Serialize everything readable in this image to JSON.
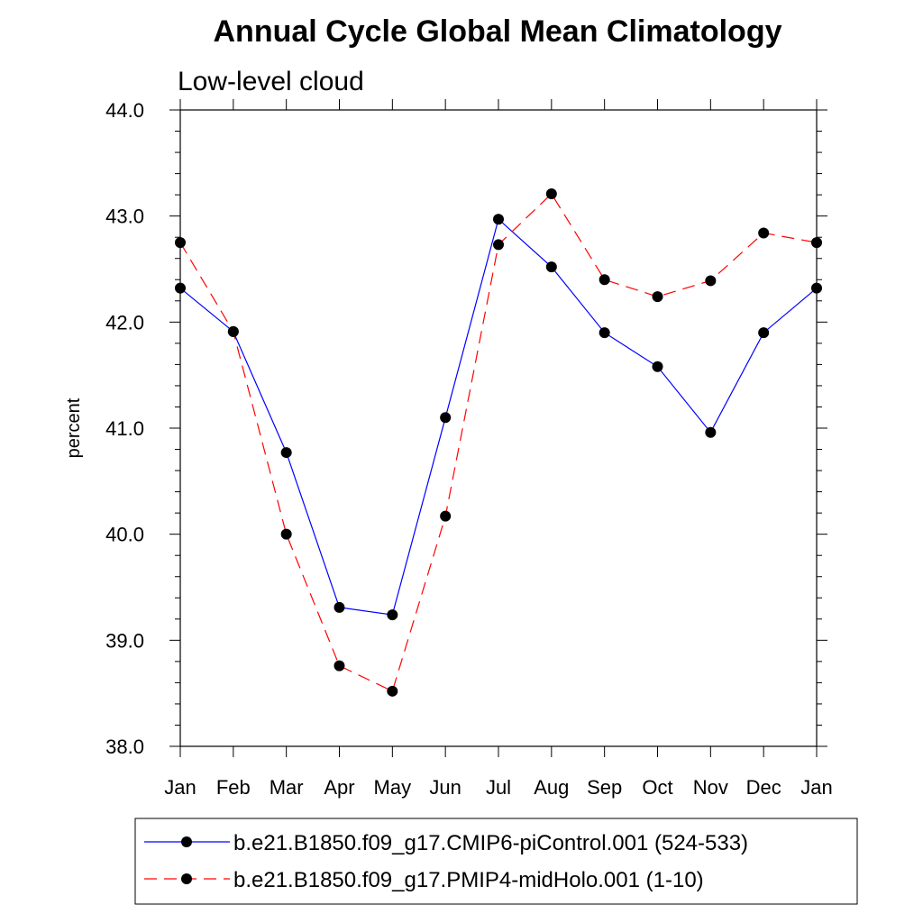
{
  "chart_data": {
    "type": "line",
    "title": "Annual Cycle Global Mean Climatology",
    "subtitle": "Low-level cloud",
    "xlabel": "",
    "ylabel": "percent",
    "categories": [
      "Jan",
      "Feb",
      "Mar",
      "Apr",
      "May",
      "Jun",
      "Jul",
      "Aug",
      "Sep",
      "Oct",
      "Nov",
      "Dec",
      "Jan"
    ],
    "ylim": [
      38.0,
      44.0
    ],
    "yticks": [
      "38.0",
      "39.0",
      "40.0",
      "41.0",
      "42.0",
      "43.0",
      "44.0"
    ],
    "grid": false,
    "legend_position": "bottom",
    "series": [
      {
        "name": "b.e21.B1850.f09_g17.CMIP6-piControl.001 (524-533)",
        "color": "#0000ff",
        "line_style": "solid",
        "marker": "circle",
        "values": [
          42.32,
          41.91,
          40.77,
          39.31,
          39.24,
          41.1,
          42.97,
          42.52,
          41.9,
          41.58,
          40.96,
          41.9,
          42.32
        ]
      },
      {
        "name": "b.e21.B1850.f09_g17.PMIP4-midHolo.001 (1-10)",
        "color": "#ff0000",
        "line_style": "dashed",
        "marker": "circle",
        "values": [
          42.75,
          41.91,
          40.0,
          38.76,
          38.52,
          40.17,
          42.73,
          43.21,
          42.4,
          42.24,
          42.39,
          42.84,
          42.75
        ]
      }
    ]
  }
}
